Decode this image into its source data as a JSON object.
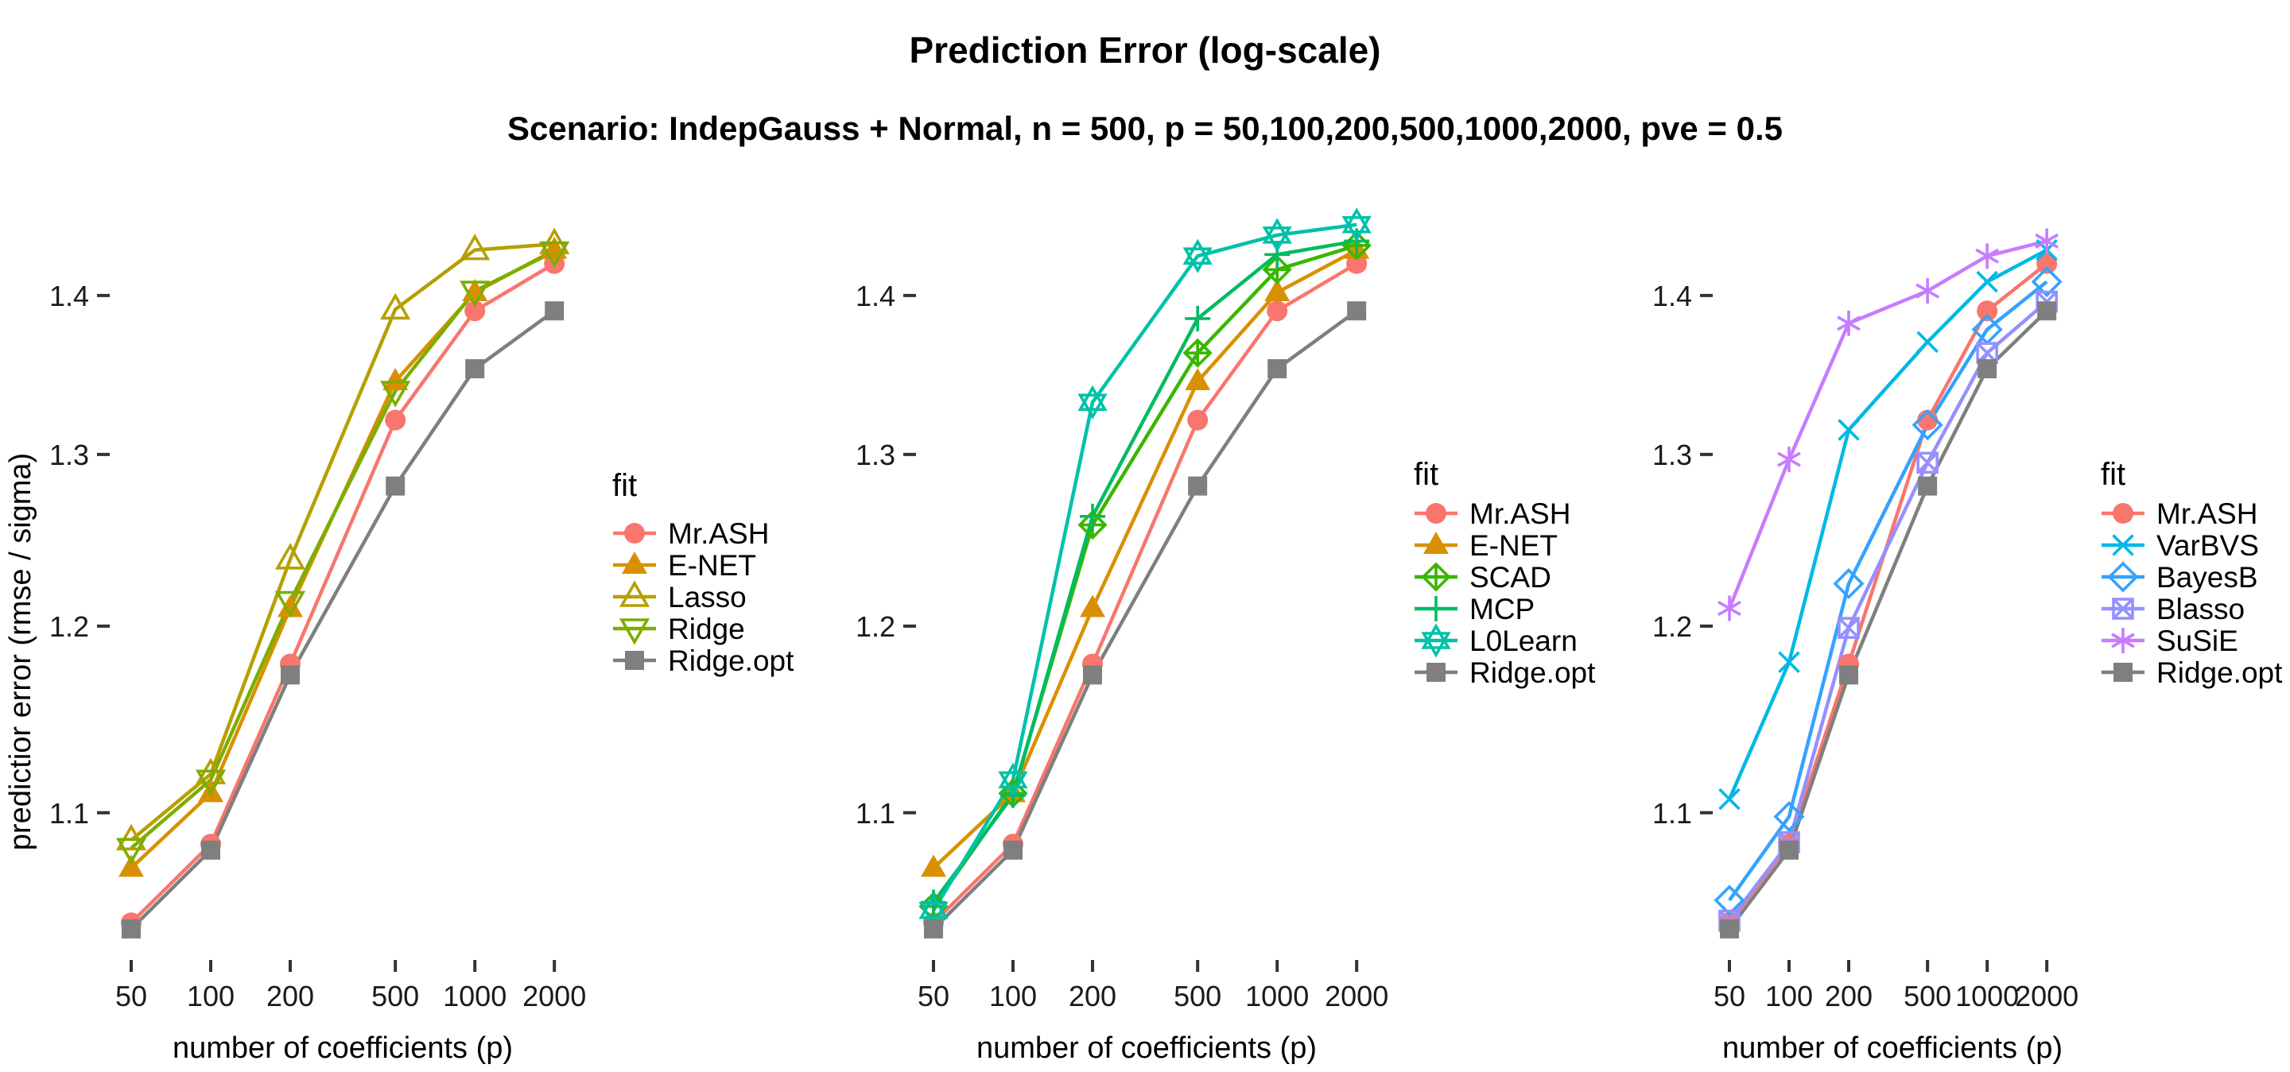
{
  "header": {
    "title": "Prediction Error (log-scale)",
    "subtitle": "Scenario: IndepGauss + Normal, n = 500, p = 50,100,200,500,1000,2000, pve = 0.5"
  },
  "axes": {
    "x_title": "number of coefficients (p)",
    "y_title": "predictior error (rmse / sigma)",
    "x_tick_labels": [
      "50",
      "100",
      "200",
      "500",
      "1000",
      "2000"
    ],
    "y_tick_labels": [
      "1.1",
      "1.2",
      "1.3",
      "1.4"
    ],
    "y_tick_values": [
      1.1,
      1.2,
      1.3,
      1.4
    ],
    "x_scale": "log",
    "y_scale": "log",
    "grid": "off"
  },
  "legend": {
    "title": "fit",
    "position": "right"
  },
  "colors": {
    "Mr.ASH": "#F8766D",
    "E-NET": "#D89000",
    "Lasso": "#B79F00",
    "Ridge": "#7CAE00",
    "SCAD": "#39B600",
    "MCP": "#00BB62",
    "L0Learn": "#00C1A9",
    "VarBVS": "#00B8E5",
    "BayesB": "#35A2FF",
    "Blasso": "#9590FF",
    "SuSiE": "#C77CFF",
    "Ridge.opt": "#7F7F7F"
  },
  "markers": {
    "Mr.ASH": "circle-filled",
    "E-NET": "triangle-filled",
    "Lasso": "triangle-open",
    "Ridge": "triangle-down-open",
    "SCAD": "diamond-plus",
    "MCP": "plus",
    "L0Learn": "star6-open",
    "VarBVS": "x-cross",
    "BayesB": "diamond-open",
    "Blasso": "square-x",
    "SuSiE": "asterisk6",
    "Ridge.opt": "square-filled"
  },
  "chart_data": [
    {
      "type": "line",
      "panel": "left",
      "x": [
        50,
        100,
        200,
        500,
        1000,
        2000
      ],
      "x_tick_labels": [
        "50",
        "100",
        "200",
        "500",
        "1000",
        "2000"
      ],
      "xlabel": "number of coefficients (p)",
      "ylabel": "predictior error (rmse / sigma)",
      "ylim": [
        1.02,
        1.47
      ],
      "legend_title": "fit",
      "series": [
        {
          "name": "Mr.ASH",
          "values": [
            1.045,
            1.084,
            1.179,
            1.321,
            1.39,
            1.421
          ]
        },
        {
          "name": "E-NET",
          "values": [
            1.072,
            1.11,
            1.21,
            1.345,
            1.402,
            1.43
          ]
        },
        {
          "name": "Lasso",
          "values": [
            1.086,
            1.12,
            1.238,
            1.391,
            1.43,
            1.434
          ]
        },
        {
          "name": "Ridge",
          "values": [
            1.082,
            1.117,
            1.214,
            1.339,
            1.403,
            1.429
          ]
        },
        {
          "name": "Ridge.opt",
          "values": [
            1.042,
            1.081,
            1.173,
            1.281,
            1.353,
            1.39
          ]
        }
      ]
    },
    {
      "type": "line",
      "panel": "middle",
      "x": [
        50,
        100,
        200,
        500,
        1000,
        2000
      ],
      "x_tick_labels": [
        "50",
        "100",
        "200",
        "500",
        "1000",
        "2000"
      ],
      "xlabel": "number of coefficients (p)",
      "ylabel": "",
      "ylim": [
        1.02,
        1.47
      ],
      "legend_title": "fit",
      "series": [
        {
          "name": "Mr.ASH",
          "values": [
            1.045,
            1.084,
            1.179,
            1.321,
            1.39,
            1.421
          ]
        },
        {
          "name": "E-NET",
          "values": [
            1.072,
            1.11,
            1.21,
            1.345,
            1.402,
            1.43
          ]
        },
        {
          "name": "SCAD",
          "values": [
            1.053,
            1.11,
            1.258,
            1.363,
            1.417,
            1.433
          ]
        },
        {
          "name": "MCP",
          "values": [
            1.055,
            1.109,
            1.263,
            1.385,
            1.427,
            1.436
          ]
        },
        {
          "name": "L0Learn",
          "values": [
            1.051,
            1.117,
            1.332,
            1.426,
            1.44,
            1.447
          ]
        },
        {
          "name": "Ridge.opt",
          "values": [
            1.042,
            1.081,
            1.173,
            1.281,
            1.353,
            1.39
          ]
        }
      ]
    },
    {
      "type": "line",
      "panel": "right",
      "x": [
        50,
        100,
        200,
        500,
        1000,
        2000
      ],
      "x_tick_labels": [
        "50",
        "100",
        "200",
        "500",
        "1000",
        "2000"
      ],
      "xlabel": "number of coefficients (p)",
      "ylabel": "",
      "ylim": [
        1.02,
        1.47
      ],
      "legend_title": "fit",
      "series": [
        {
          "name": "Mr.ASH",
          "values": [
            1.045,
            1.084,
            1.179,
            1.321,
            1.39,
            1.421
          ]
        },
        {
          "name": "VarBVS",
          "values": [
            1.107,
            1.18,
            1.315,
            1.37,
            1.409,
            1.43
          ]
        },
        {
          "name": "BayesB",
          "values": [
            1.056,
            1.098,
            1.224,
            1.318,
            1.378,
            1.409
          ]
        },
        {
          "name": "Blasso",
          "values": [
            1.046,
            1.085,
            1.199,
            1.295,
            1.363,
            1.396
          ]
        },
        {
          "name": "SuSiE",
          "values": [
            1.21,
            1.297,
            1.382,
            1.403,
            1.426,
            1.436
          ]
        },
        {
          "name": "Ridge.opt",
          "values": [
            1.042,
            1.081,
            1.173,
            1.281,
            1.353,
            1.39
          ]
        }
      ]
    }
  ]
}
